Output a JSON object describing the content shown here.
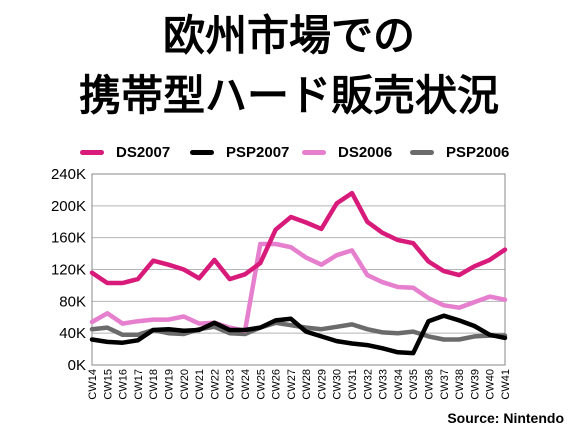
{
  "title_line1": "欧州市場での",
  "title_line2": "携帯型ハード販売状況",
  "source": "Source: Nintendo",
  "chart_data": {
    "type": "line",
    "title": "欧州市場での携帯型ハード販売状況",
    "xlabel": "",
    "ylabel": "",
    "ylim": [
      0,
      240000
    ],
    "yticks": [
      0,
      40000,
      80000,
      120000,
      160000,
      200000,
      240000
    ],
    "ytick_labels": [
      "0K",
      "40K",
      "80K",
      "120K",
      "160K",
      "200K",
      "240K"
    ],
    "grid": "horizontal",
    "legend": "top",
    "categories": [
      "CW14",
      "CW15",
      "CW16",
      "CW17",
      "CW18",
      "CW19",
      "CW20",
      "CW21",
      "CW22",
      "CW23",
      "CW24",
      "CW25",
      "CW26",
      "CW27",
      "CW28",
      "CW29",
      "CW30",
      "CW31",
      "CW32",
      "CW33",
      "CW34",
      "CW35",
      "CW36",
      "CW37",
      "CW38",
      "CW39",
      "CW40",
      "CW41"
    ],
    "series": [
      {
        "name": "DS2007",
        "color": "#d81b7a",
        "values": [
          116000,
          103000,
          103000,
          108000,
          131000,
          126000,
          120000,
          109000,
          132000,
          108000,
          114000,
          128000,
          170000,
          186000,
          179000,
          171000,
          203000,
          216000,
          180000,
          166000,
          157000,
          153000,
          130000,
          118000,
          113000,
          124000,
          132000,
          145000
        ]
      },
      {
        "name": "PSP2007",
        "color": "#000000",
        "values": [
          32000,
          29000,
          28000,
          31000,
          44000,
          45000,
          43000,
          44000,
          53000,
          44000,
          44000,
          47000,
          56000,
          58000,
          42000,
          36000,
          30000,
          27000,
          25000,
          21000,
          16000,
          15000,
          55000,
          62000,
          56000,
          49000,
          38000,
          34000
        ]
      },
      {
        "name": "DS2006",
        "color": "#e57fce",
        "values": [
          54000,
          65000,
          52000,
          55000,
          57000,
          57000,
          61000,
          52000,
          53000,
          47000,
          43000,
          152000,
          152000,
          148000,
          135000,
          126000,
          138000,
          144000,
          113000,
          104000,
          98000,
          97000,
          84000,
          75000,
          72000,
          79000,
          86000,
          82000
        ]
      },
      {
        "name": "PSP2006",
        "color": "#6b6b6b",
        "values": [
          45000,
          47000,
          38000,
          38000,
          44000,
          40000,
          39000,
          45000,
          48000,
          40000,
          39000,
          47000,
          53000,
          50000,
          47000,
          45000,
          48000,
          51000,
          45000,
          41000,
          40000,
          42000,
          36000,
          32000,
          32000,
          36000,
          37000,
          37000
        ]
      }
    ]
  }
}
